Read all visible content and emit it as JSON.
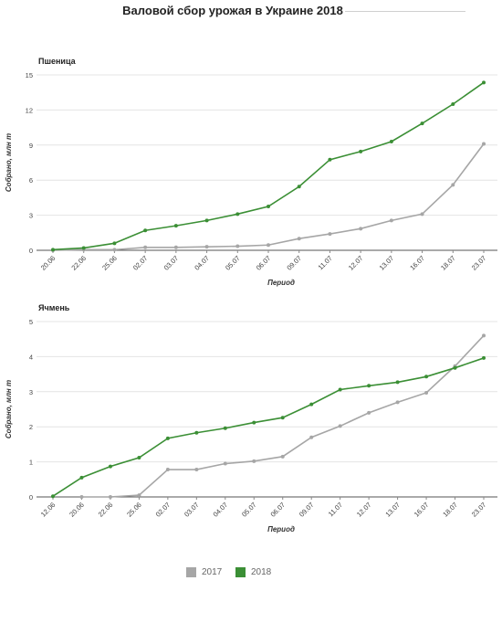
{
  "title": "Валовой сбор урожая в Украине 2018",
  "colors": {
    "s2017": "#a6a6a6",
    "s2018": "#3b8f35",
    "grid": "#e4e4e4",
    "axis": "#555555"
  },
  "legend": [
    {
      "label": "2017",
      "color": "#a6a6a6"
    },
    {
      "label": "2018",
      "color": "#3b8f35"
    }
  ],
  "chart_data": [
    {
      "type": "line",
      "title": "Пшеница",
      "xlabel": "Период",
      "ylabel": "Собрано, млн т",
      "categories": [
        "20.06",
        "22.06",
        "25.06",
        "02.07",
        "03.07",
        "04.07",
        "05.07",
        "06.07",
        "09.07",
        "11.07",
        "12.07",
        "13.07",
        "16.07",
        "18.07",
        "23.07"
      ],
      "ylim": [
        0,
        15
      ],
      "yticks": [
        0,
        3,
        6,
        9,
        12,
        15
      ],
      "grid": true,
      "series": [
        {
          "name": "2017",
          "values": [
            0,
            0.05,
            0.05,
            0.25,
            0.25,
            0.3,
            0.35,
            0.45,
            1.0,
            1.4,
            1.85,
            2.55,
            3.1,
            5.6,
            9.1
          ]
        },
        {
          "name": "2018",
          "values": [
            0.05,
            0.2,
            0.6,
            1.7,
            2.1,
            2.55,
            3.1,
            3.75,
            5.45,
            7.75,
            8.45,
            9.3,
            10.85,
            12.5,
            14.35
          ]
        }
      ]
    },
    {
      "type": "line",
      "title": "Ячмень",
      "xlabel": "Период",
      "ylabel": "Собрано, млн т",
      "categories": [
        "12.06",
        "20.06",
        "22.06",
        "25.06",
        "02.07",
        "03.07",
        "04.07",
        "05.07",
        "06.07",
        "09.07",
        "11.07",
        "12.07",
        "13.07",
        "16.07",
        "18.07",
        "23.07"
      ],
      "ylim": [
        0,
        5
      ],
      "yticks": [
        0,
        1,
        2,
        3,
        4,
        5
      ],
      "grid": true,
      "series": [
        {
          "name": "2017",
          "values": [
            null,
            0,
            0,
            0.05,
            0.78,
            0.78,
            0.95,
            1.02,
            1.15,
            1.7,
            2.02,
            2.4,
            2.7,
            2.97,
            3.73,
            4.6
          ]
        },
        {
          "name": "2018",
          "values": [
            0.02,
            0.55,
            0.87,
            1.12,
            1.67,
            1.83,
            1.96,
            2.12,
            2.26,
            2.64,
            3.06,
            3.17,
            3.27,
            3.43,
            3.68,
            3.96
          ]
        }
      ]
    }
  ]
}
